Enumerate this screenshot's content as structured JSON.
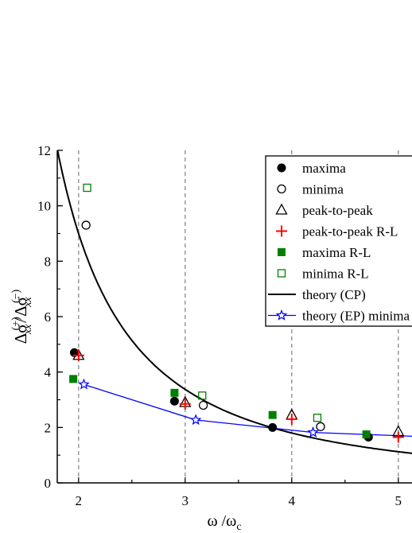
{
  "chart_data": {
    "type": "scatter",
    "xlabel": "ω /ω",
    "xlabel_sub": "c",
    "ylabel": {
      "delta": "Δσ",
      "sup_plus": "(+)",
      "sub": "xx",
      "slash": "/",
      "sup_minus": "(−)"
    },
    "xlim": [
      1.8,
      5.15
    ],
    "ylim": [
      0,
      12
    ],
    "xticks": [
      "2",
      "3",
      "4",
      "5"
    ],
    "yticks": [
      "0",
      "2",
      "4",
      "6",
      "8",
      "10",
      "12"
    ],
    "xgrid": [
      2,
      3,
      4,
      5
    ],
    "legend_position": "top-right",
    "series": [
      {
        "name": "maxima",
        "marker": "filled-circle",
        "color": "#000000",
        "points": [
          [
            1.96,
            4.7
          ],
          [
            2.9,
            2.95
          ],
          [
            3.82,
            2.0
          ],
          [
            4.72,
            1.65
          ]
        ]
      },
      {
        "name": "minima",
        "marker": "open-circle",
        "color": "#000000",
        "points": [
          [
            2.07,
            9.3
          ],
          [
            3.17,
            2.8
          ],
          [
            4.27,
            2.03
          ]
        ]
      },
      {
        "name": "peak-to-peak",
        "marker": "open-triangle",
        "color": "#000000",
        "points": [
          [
            2.0,
            4.6
          ],
          [
            3.0,
            2.9
          ],
          [
            4.0,
            2.45
          ],
          [
            5.0,
            1.85
          ]
        ]
      },
      {
        "name": "peak-to-peak R-L",
        "marker": "plus",
        "color": "#ff0000",
        "points": [
          [
            2.0,
            4.6
          ],
          [
            3.0,
            2.85
          ],
          [
            4.0,
            2.3
          ],
          [
            5.0,
            1.65
          ]
        ]
      },
      {
        "name": "maxima R-L",
        "marker": "filled-square",
        "color": "#008000",
        "points": [
          [
            1.95,
            3.75
          ],
          [
            2.9,
            3.25
          ],
          [
            3.82,
            2.45
          ],
          [
            4.7,
            1.75
          ]
        ]
      },
      {
        "name": "minima R-L",
        "marker": "open-square",
        "color": "#008000",
        "points": [
          [
            2.08,
            10.65
          ],
          [
            3.16,
            3.15
          ],
          [
            4.24,
            2.35
          ]
        ]
      },
      {
        "name": "theory (CP)",
        "type": "line",
        "color": "#000000"
      },
      {
        "name": "theory (EP) minima",
        "type": "line-star",
        "color": "#0000ff",
        "points": [
          [
            2.05,
            3.55
          ],
          [
            3.1,
            2.27
          ],
          [
            4.2,
            1.82
          ],
          [
            5.15,
            1.68
          ]
        ]
      }
    ]
  }
}
